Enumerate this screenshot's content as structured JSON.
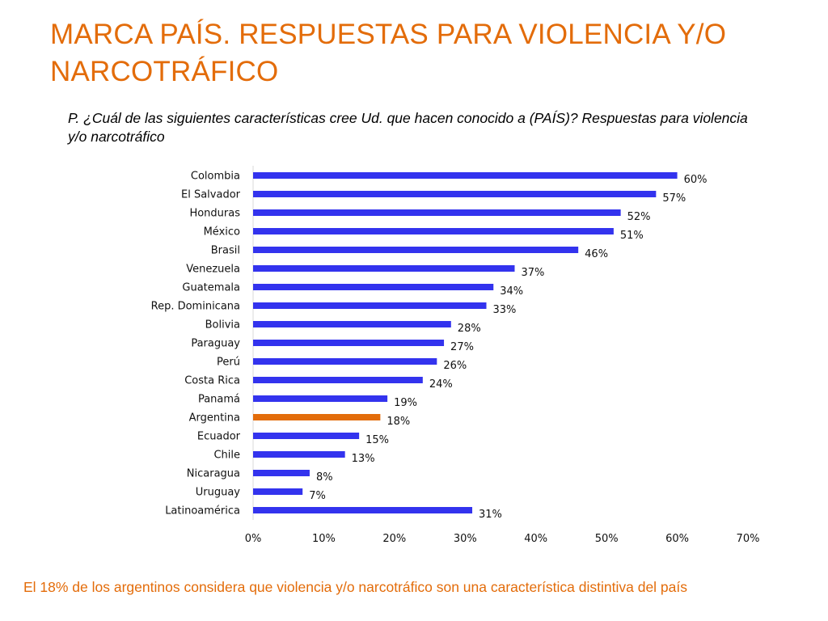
{
  "slide": {
    "title": "MARCA PAÍS. RESPUESTAS PARA VIOLENCIA Y/O NARCOTRÁFICO",
    "question": "P. ¿Cuál de las siguientes características cree Ud. que hacen conocido a (PAÍS)? Respuestas para violencia y/o narcotráfico",
    "footer": "El 18% de los argentinos considera que violencia y/o narcotráfico son una característica distintiva del país"
  },
  "colors": {
    "title": "#e36c0a",
    "bar": "#3333ee",
    "highlight_bar": "#e36c0a"
  },
  "chart_data": {
    "type": "bar",
    "orientation": "horizontal",
    "title": "",
    "xlabel": "",
    "ylabel": "",
    "categories": [
      "Colombia",
      "El Salvador",
      "Honduras",
      "México",
      "Brasil",
      "Venezuela",
      "Guatemala",
      "Rep. Dominicana",
      "Bolivia",
      "Paraguay",
      "Perú",
      "Costa Rica",
      "Panamá",
      "Argentina",
      "Ecuador",
      "Chile",
      "Nicaragua",
      "Uruguay",
      "Latinoamérica"
    ],
    "values": [
      60,
      57,
      52,
      51,
      46,
      37,
      34,
      33,
      28,
      27,
      26,
      24,
      19,
      18,
      15,
      13,
      8,
      7,
      31
    ],
    "value_labels": [
      "60%",
      "57%",
      "52%",
      "51%",
      "46%",
      "37%",
      "34%",
      "33%",
      "28%",
      "27%",
      "26%",
      "24%",
      "19%",
      "18%",
      "15%",
      "13%",
      "8%",
      "7%",
      "31%"
    ],
    "highlight_category": "Argentina",
    "xlim": [
      0,
      70
    ],
    "xticks": [
      0,
      10,
      20,
      30,
      40,
      50,
      60,
      70
    ],
    "xtick_labels": [
      "0%",
      "10%",
      "20%",
      "30%",
      "40%",
      "50%",
      "60%",
      "70%"
    ],
    "grid": false,
    "legend": "none"
  }
}
